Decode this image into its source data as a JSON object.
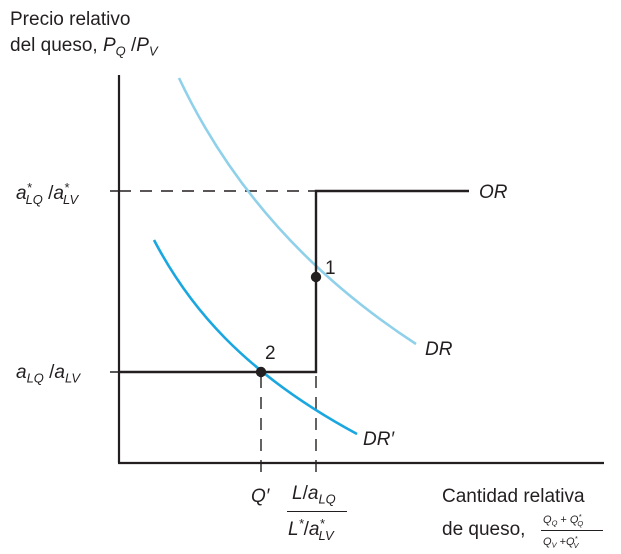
{
  "yaxis": {
    "line1": "Precio relativo",
    "line2": "del queso, ",
    "var_num": "P",
    "var_num_sub": "Q",
    "slash": " /",
    "var_den": "P",
    "var_den_sub": "V"
  },
  "xaxis": {
    "line1": "Cantidad relativa",
    "line2": "de queso, ",
    "frac_num": "Q",
    "frac_num_sub": "Q",
    "frac_num_plus": " + ",
    "frac_num2": "Q",
    "frac_num2_sup": "*",
    "frac_num2_sub": "Q",
    "frac_den": "Q",
    "frac_den_sub": "V",
    "frac_den_plus": " +",
    "frac_den2": "Q",
    "frac_den2_sup": "*",
    "frac_den2_sub": "V"
  },
  "ytick_high": {
    "a1": "a",
    "a1_sup": "*",
    "a1_sub": "LQ",
    "sep": " /",
    "a2": "a",
    "a2_sup": "*",
    "a2_sub": "LV"
  },
  "ytick_low": {
    "a1": "a",
    "a1_sub": "LQ",
    "sep": " /",
    "a2": "a",
    "a2_sub": "LV"
  },
  "xtick_q": "Q′",
  "xtick_frac": {
    "num_L": "L",
    "num_sep": "/",
    "num_a": "a",
    "num_a_sub": "LQ",
    "den_L": "L",
    "den_L_sup": "*",
    "den_sep": "/",
    "den_a": "a",
    "den_a_sup": "*",
    "den_a_sub": "LV"
  },
  "curve_labels": {
    "or": "OR",
    "dr": "DR",
    "dr_prime": "DR′"
  },
  "points": {
    "p1": "1",
    "p2": "2"
  },
  "colors": {
    "axis": "#231f20",
    "dr": "#8fd0ea",
    "dr_prime": "#1aa7e0"
  }
}
